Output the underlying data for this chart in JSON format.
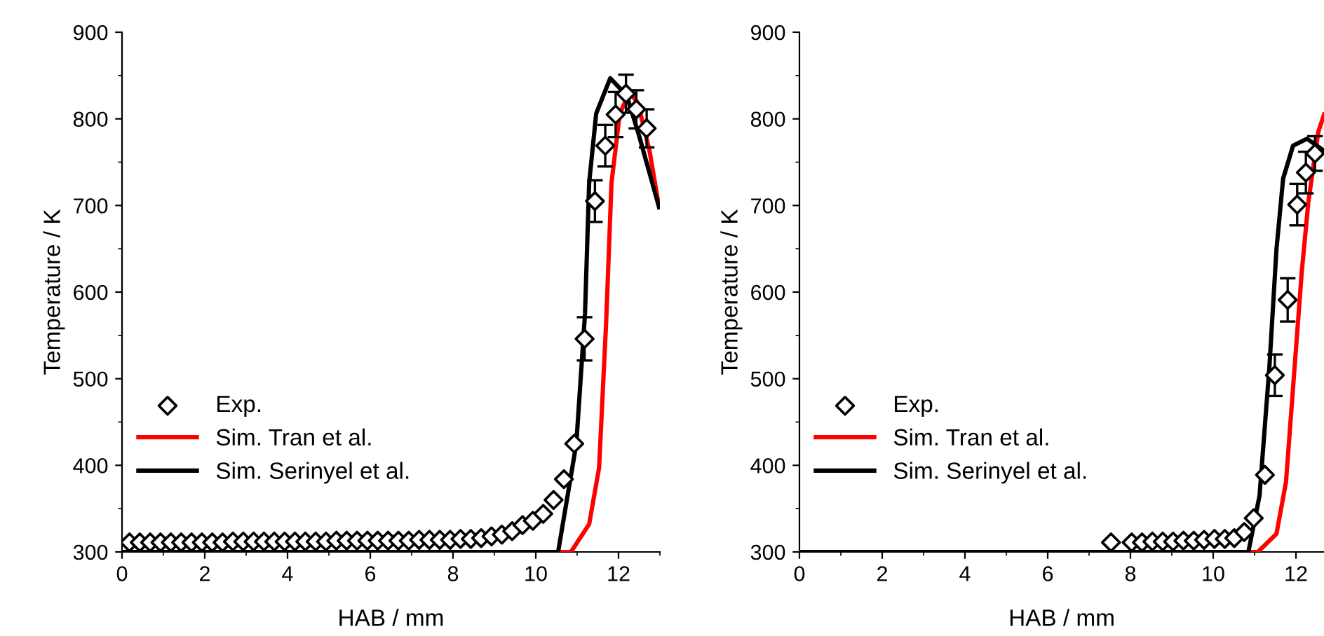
{
  "chart_data": [
    {
      "type": "line",
      "xlabel": "HAB / mm",
      "ylabel": "Temperature / K",
      "xlim": [
        0,
        13
      ],
      "ylim": [
        300,
        900
      ],
      "xticks": [
        0,
        2,
        4,
        6,
        8,
        10,
        12
      ],
      "yticks": [
        300,
        400,
        500,
        600,
        700,
        800,
        900
      ],
      "legend": "lower left",
      "grid": false,
      "series": [
        {
          "name": "Exp.",
          "type": "scatter",
          "marker": "diamond",
          "color": "#000000",
          "x": [
            0.18,
            0.43,
            0.68,
            0.93,
            1.18,
            1.43,
            1.68,
            1.93,
            2.18,
            2.43,
            2.68,
            2.93,
            3.18,
            3.43,
            3.68,
            3.93,
            4.18,
            4.43,
            4.68,
            4.93,
            5.18,
            5.43,
            5.68,
            5.93,
            6.18,
            6.43,
            6.68,
            6.93,
            7.18,
            7.43,
            7.68,
            7.93,
            8.18,
            8.43,
            8.68,
            8.93,
            9.18,
            9.43,
            9.68,
            9.93,
            10.18,
            10.43,
            10.68,
            10.93,
            11.18,
            11.43,
            11.68,
            11.93,
            12.18,
            12.43,
            12.68
          ],
          "values": [
            311,
            311,
            311,
            311,
            311,
            311,
            311,
            311,
            311,
            311,
            312,
            312,
            312,
            312,
            312,
            312,
            312,
            312,
            312,
            312,
            313,
            313,
            313,
            313,
            313,
            313,
            313,
            313,
            314,
            314,
            314,
            314,
            315,
            315,
            316,
            318,
            320,
            324,
            331,
            336,
            344,
            360,
            384,
            425,
            546,
            705,
            769,
            805,
            829,
            811,
            789
          ],
          "errors": [
            null,
            null,
            null,
            null,
            null,
            null,
            null,
            null,
            null,
            null,
            null,
            null,
            null,
            null,
            null,
            null,
            null,
            null,
            null,
            null,
            null,
            null,
            null,
            null,
            null,
            null,
            null,
            null,
            null,
            null,
            null,
            null,
            null,
            null,
            null,
            null,
            null,
            null,
            null,
            null,
            null,
            null,
            null,
            null,
            25,
            24,
            24,
            26,
            22,
            22,
            22
          ]
        },
        {
          "name": "Sim. Tran et al.",
          "color": "#ff0000",
          "marker": "none",
          "line_style": "solid",
          "x": [
            0,
            10.85,
            11.29,
            11.53,
            11.7,
            11.83,
            12.03,
            12.27,
            12.47,
            12.75,
            12.98
          ],
          "values": [
            300,
            300,
            332,
            397,
            564,
            726,
            806,
            831,
            818,
            763,
            698
          ]
        },
        {
          "name": "Sim. Serinyel et al.",
          "color": "#000000",
          "marker": "none",
          "line_style": "solid",
          "x": [
            0,
            10.54,
            10.98,
            11.19,
            11.29,
            11.46,
            11.8,
            12.2,
            12.5,
            12.98
          ],
          "values": [
            300,
            300,
            425,
            575,
            726,
            806,
            847,
            827,
            780,
            698
          ]
        }
      ]
    },
    {
      "type": "line",
      "xlabel": "HAB / mm",
      "ylabel": "Temperature / K",
      "xlim": [
        0,
        12.68
      ],
      "ylim": [
        300,
        900
      ],
      "xticks": [
        0,
        2,
        4,
        6,
        8,
        10,
        12
      ],
      "yticks": [
        300,
        400,
        500,
        600,
        700,
        800,
        900
      ],
      "legend": "lower left",
      "grid": false,
      "series": [
        {
          "name": "Exp.",
          "type": "scatter",
          "marker": "diamond",
          "color": "#000000",
          "x": [
            7.53,
            8.03,
            8.28,
            8.53,
            8.78,
            9.03,
            9.28,
            9.53,
            9.78,
            10.03,
            10.28,
            10.51,
            10.75,
            10.98,
            11.25,
            11.49,
            11.8,
            12.03,
            12.24,
            12.46
          ],
          "values": [
            311,
            311,
            311,
            312,
            312,
            312,
            313,
            313,
            314,
            315,
            315,
            316,
            323,
            339,
            389,
            504,
            591,
            701,
            738,
            760
          ],
          "errors": [
            null,
            null,
            null,
            null,
            null,
            null,
            null,
            null,
            null,
            null,
            null,
            null,
            null,
            null,
            null,
            24,
            25,
            24,
            24,
            20
          ]
        },
        {
          "name": "Sim. Tran et al.",
          "color": "#ff0000",
          "marker": "none",
          "line_style": "solid",
          "x": [
            0,
            11.08,
            11.53,
            11.76,
            11.97,
            12.14,
            12.3,
            12.54,
            12.68
          ],
          "values": [
            300,
            300,
            321,
            381,
            515,
            623,
            704,
            785,
            805
          ]
        },
        {
          "name": "Sim. Serinyel et al.",
          "color": "#000000",
          "marker": "none",
          "line_style": "solid",
          "x": [
            0,
            10.85,
            11.12,
            11.36,
            11.53,
            11.69,
            11.93,
            12.27,
            12.68
          ],
          "values": [
            300,
            300,
            365,
            515,
            650,
            731,
            769,
            777,
            763
          ]
        }
      ]
    }
  ]
}
